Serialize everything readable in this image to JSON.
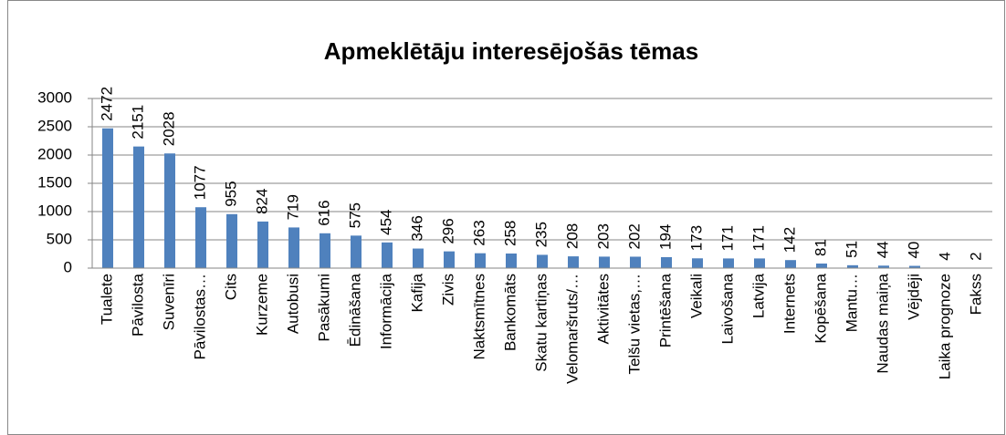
{
  "chart_data": {
    "type": "bar",
    "title": "Apmeklētāju interesējošās tēmas",
    "categories": [
      "Tualete",
      "Pāvilosta",
      "Suvenīri",
      "Pāvilostas…",
      "Cits",
      "Kurzeme",
      "Autobusi",
      "Pasākumi",
      "Ēdināšana",
      "Informācija",
      "Kafija",
      "Zivis",
      "Naktsmītnes",
      "Bankomāts",
      "Skatu kartiņas",
      "Velomaršruts/…",
      "Aktivitātes",
      "Telšu vietas,…",
      "Printēšana",
      "Veikali",
      "Laivošana",
      "Latvija",
      "Internets",
      "Kopēšana",
      "Mantu…",
      "Naudas maiņa",
      "Vējdēji",
      "Laika prognoze",
      "Fakss"
    ],
    "values": [
      2472,
      2151,
      2028,
      1077,
      955,
      824,
      719,
      616,
      575,
      454,
      346,
      296,
      263,
      258,
      235,
      208,
      203,
      202,
      194,
      173,
      171,
      171,
      142,
      81,
      51,
      44,
      40,
      4,
      2
    ],
    "color": "#4f81bd",
    "ylim": [
      0,
      3000
    ],
    "yticks": [
      0,
      500,
      1000,
      1500,
      2000,
      2500,
      3000
    ],
    "grid": true
  }
}
